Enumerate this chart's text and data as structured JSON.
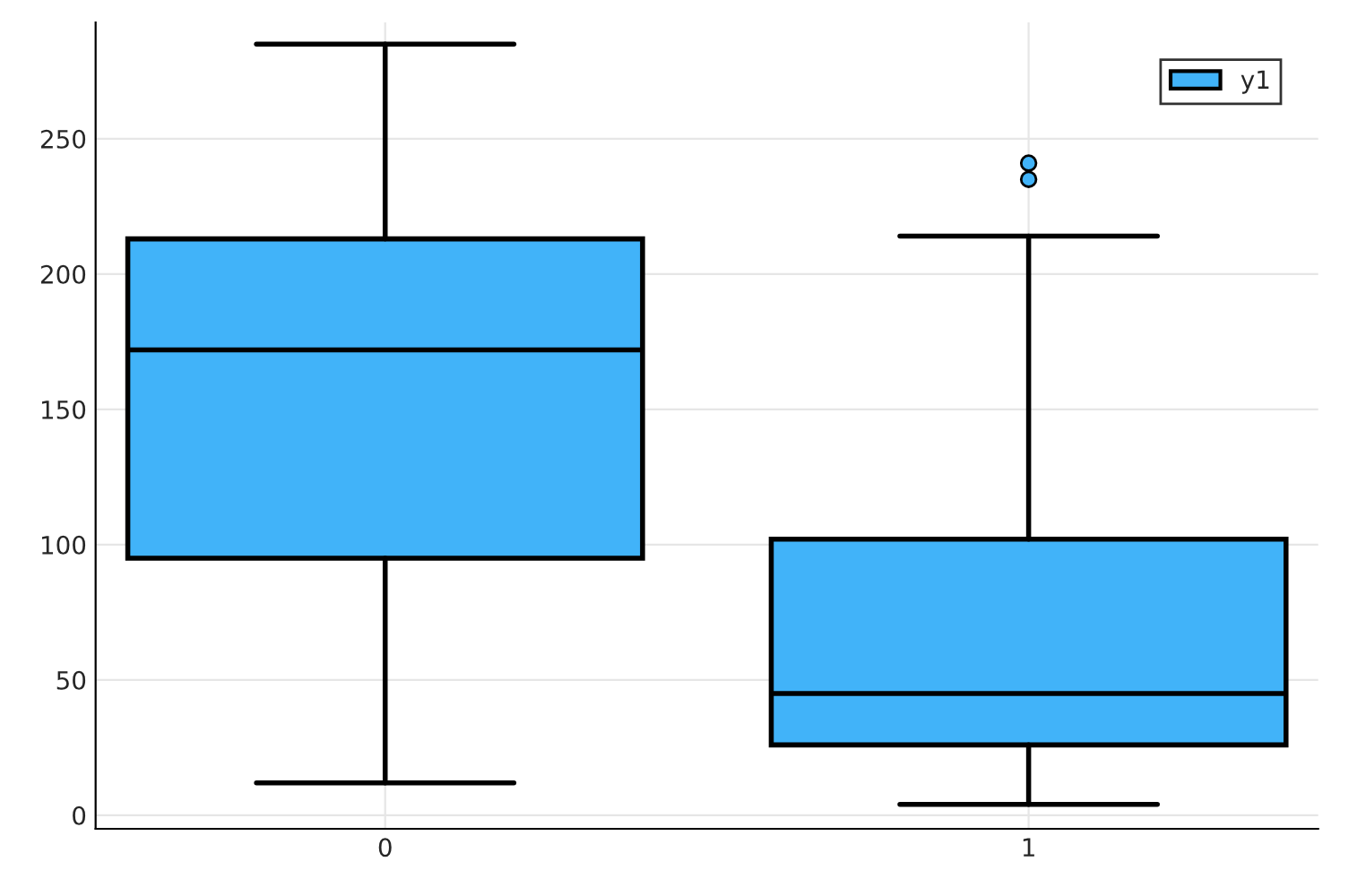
{
  "chart_data": {
    "type": "box",
    "categories": [
      "0",
      "1"
    ],
    "series": [
      {
        "name": "y1",
        "color": "#41b3f9",
        "boxes": [
          {
            "low": 12,
            "q1": 95,
            "median": 172,
            "q3": 213,
            "high": 285
          },
          {
            "low": 4,
            "q1": 26,
            "median": 45,
            "q3": 102,
            "high": 214,
            "outliers": [
              235,
              241
            ]
          }
        ]
      }
    ],
    "ylim": [
      -5,
      293
    ],
    "yticks": [
      0,
      50,
      100,
      150,
      200,
      250
    ],
    "grid": true,
    "legend": "top right"
  }
}
